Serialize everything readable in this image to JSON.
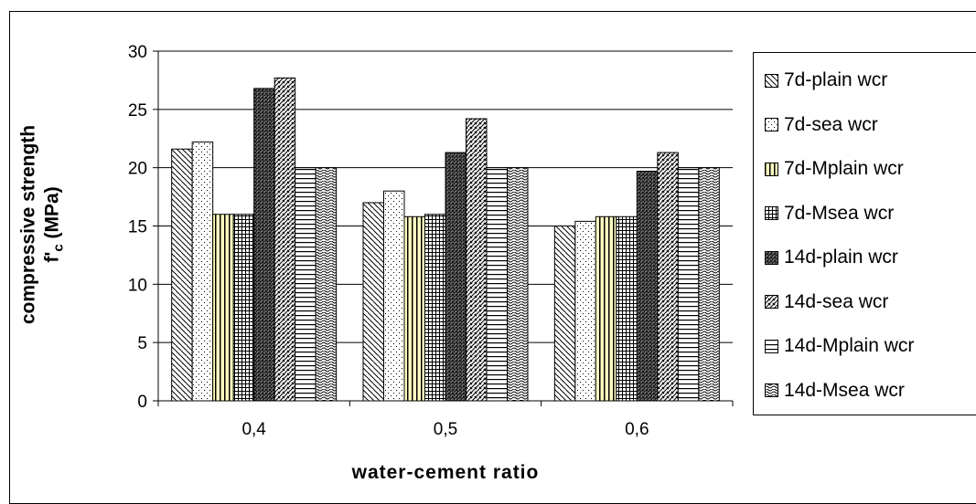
{
  "chart_data": {
    "type": "bar",
    "xlabel": "water-cement ratio",
    "ylabel_line1": "compressive strength",
    "ylabel_line2_prefix": "f'",
    "ylabel_line2_sub": "c",
    "ylabel_line2_suffix": " (MPa)",
    "ylim": [
      0,
      30
    ],
    "yticks": [
      0,
      5,
      10,
      15,
      20,
      25,
      30
    ],
    "grid": true,
    "legend_position": "right",
    "categories": [
      "0,4",
      "0,5",
      "0,6"
    ],
    "series": [
      {
        "name": "7d-plain wcr",
        "pattern": "diag-down",
        "values": [
          21.6,
          17.0,
          15.0
        ]
      },
      {
        "name": "7d-sea wcr",
        "pattern": "dots",
        "values": [
          22.2,
          18.0,
          15.4
        ]
      },
      {
        "name": "7d-Mplain wcr",
        "pattern": "vert-yellow",
        "values": [
          16.0,
          15.8,
          15.8
        ]
      },
      {
        "name": "7d-Msea wcr",
        "pattern": "grid",
        "values": [
          16.0,
          16.0,
          15.8
        ]
      },
      {
        "name": "14d-plain wcr",
        "pattern": "dense-dark",
        "values": [
          26.8,
          21.3,
          19.7
        ]
      },
      {
        "name": "14d-sea wcr",
        "pattern": "diag-up",
        "values": [
          27.7,
          24.2,
          21.3
        ]
      },
      {
        "name": "14d-Mplain wcr",
        "pattern": "horiz",
        "values": [
          20.0,
          20.0,
          20.0
        ]
      },
      {
        "name": "14d-Msea wcr",
        "pattern": "wave",
        "values": [
          20.0,
          20.0,
          20.0
        ]
      }
    ]
  }
}
